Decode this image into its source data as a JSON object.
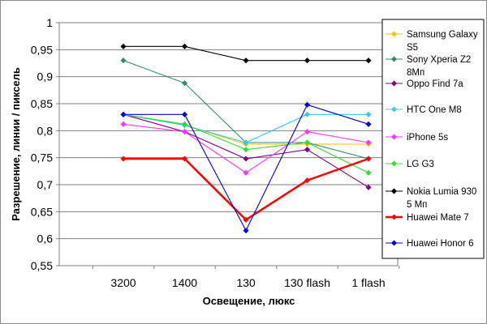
{
  "chart_data": {
    "type": "line",
    "xlabel": "Освещение, люкс",
    "ylabel": "Разрешение, линии / пиксель",
    "categories": [
      "3200",
      "1400",
      "130",
      "130 flash",
      "1 flash"
    ],
    "ylim": [
      0.55,
      1.0
    ],
    "yticks": [
      "0,55",
      "0,6",
      "0,65",
      "0,7",
      "0,75",
      "0,8",
      "0,85",
      "0,9",
      "0,95",
      "1"
    ],
    "grid": "horizontal",
    "legend_position": "right",
    "series": [
      {
        "name_lines": [
          "Samsung Galaxy",
          "S5"
        ],
        "color": "#ffc000",
        "values": [
          0.83,
          0.81,
          0.775,
          0.775,
          0.775
        ]
      },
      {
        "name_lines": [
          "Sony Xperia Z2",
          "8Мп"
        ],
        "color": "#2e8b6f",
        "values": [
          0.93,
          0.888,
          0.778,
          0.778,
          0.748
        ]
      },
      {
        "name_lines": [
          "Oppo Find 7a"
        ],
        "color": "#800080",
        "values": [
          0.83,
          0.798,
          0.748,
          0.765,
          0.695
        ]
      },
      {
        "name_lines": [
          "HTC One M8"
        ],
        "color": "#33ccee",
        "values": [
          0.83,
          0.81,
          0.778,
          0.83,
          0.83
        ]
      },
      {
        "name_lines": [
          "iPhone 5s"
        ],
        "color": "#ff33ff",
        "values": [
          0.812,
          0.798,
          0.722,
          0.798,
          0.778
        ]
      },
      {
        "name_lines": [
          "LG G3"
        ],
        "color": "#33dd33",
        "values": [
          0.83,
          0.812,
          0.765,
          0.778,
          0.722
        ]
      },
      {
        "name_lines": [
          "Nokia Lumia 930",
          "5 Мп"
        ],
        "color": "#000000",
        "values": [
          0.956,
          0.956,
          0.93,
          0.93,
          0.93
        ]
      },
      {
        "name_lines": [
          "Huawei Mate 7"
        ],
        "color": "#ff0000",
        "values": [
          0.748,
          0.748,
          0.635,
          0.708,
          0.748
        ],
        "bold": true
      },
      {
        "name_lines": [
          "Huawei Honor 6"
        ],
        "color": "#0000dd",
        "values": [
          0.83,
          0.83,
          0.615,
          0.848,
          0.812
        ]
      }
    ]
  }
}
